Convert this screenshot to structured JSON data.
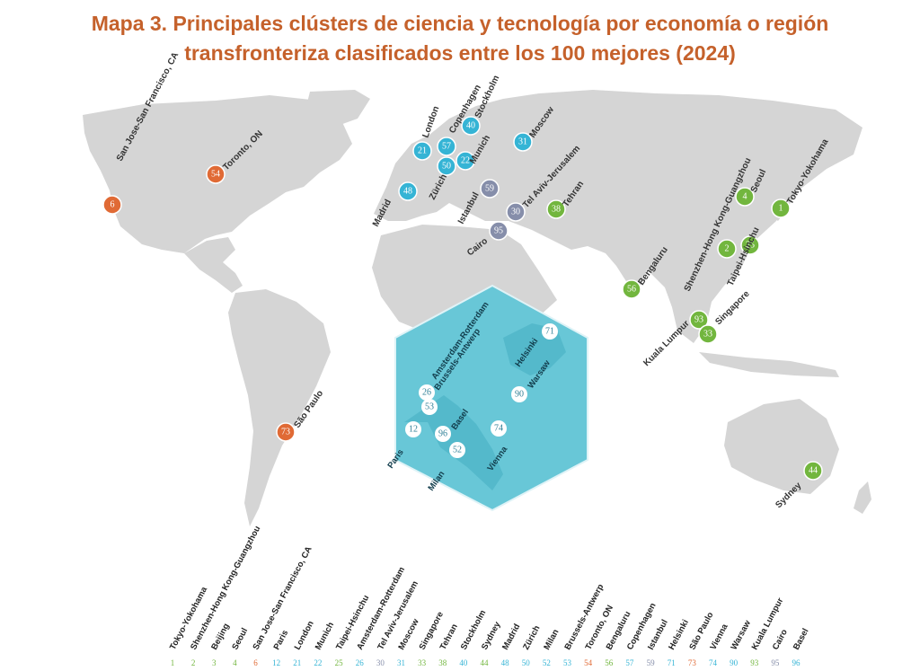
{
  "title": {
    "line1": "Mapa 3. Principales clústers de ciencia y tecnología por economía o región",
    "line2": "transfronteriza clasificados entre los 100 mejores (2024)"
  },
  "colors": {
    "Americas": "#e06a35",
    "Europe": "#35b4d5",
    "MiddleEastAfrica": "#868eaa",
    "AsiaPacific": "#72b63e",
    "inset_fill": "#68c7d7"
  },
  "markers": [
    {
      "name": "San Jose-San Francisco, CA",
      "rank": "6",
      "region": "Americas"
    },
    {
      "name": "Toronto, ON",
      "rank": "54",
      "region": "Americas"
    },
    {
      "name": "São Paulo",
      "rank": "73",
      "region": "Americas"
    },
    {
      "name": "London",
      "rank": "21",
      "region": "Europe"
    },
    {
      "name": "Copenhagen",
      "rank": "57",
      "region": "Europe"
    },
    {
      "name": "Stockholm",
      "rank": "40",
      "region": "Europe"
    },
    {
      "name": "Munich",
      "rank": "22",
      "region": "Europe"
    },
    {
      "name": "Zürich",
      "rank": "50",
      "region": "Europe"
    },
    {
      "name": "Madrid",
      "rank": "48",
      "region": "Europe"
    },
    {
      "name": "Moscow",
      "rank": "31",
      "region": "Europe"
    },
    {
      "name": "Istanbul",
      "rank": "59",
      "region": "MiddleEastAfrica"
    },
    {
      "name": "Tel Aviv-Jerusalem",
      "rank": "30",
      "region": "MiddleEastAfrica"
    },
    {
      "name": "Cairo",
      "rank": "95",
      "region": "MiddleEastAfrica"
    },
    {
      "name": "Tehran",
      "rank": "38",
      "region": "AsiaPacific"
    },
    {
      "name": "Seoul",
      "rank": "4",
      "region": "AsiaPacific"
    },
    {
      "name": "Tokyo-Yokohama",
      "rank": "1",
      "region": "AsiaPacific"
    },
    {
      "name": "Shenzhen-Hong Kong-Guangzhou",
      "rank": "2",
      "region": "AsiaPacific"
    },
    {
      "name": "Taipei-Hsinchu",
      "rank": "25",
      "region": "AsiaPacific"
    },
    {
      "name": "Bengaluru",
      "rank": "56",
      "region": "AsiaPacific"
    },
    {
      "name": "Kuala Lumpur",
      "rank": "93",
      "region": "AsiaPacific"
    },
    {
      "name": "Singapore",
      "rank": "33",
      "region": "AsiaPacific"
    },
    {
      "name": "Sydney",
      "rank": "44",
      "region": "AsiaPacific"
    }
  ],
  "inset": [
    {
      "name": "Amsterdam-Rotterdam",
      "rank": "26"
    },
    {
      "name": "Brussels-Antwerp",
      "rank": "53"
    },
    {
      "name": "Paris",
      "rank": "12"
    },
    {
      "name": "Basel",
      "rank": "96"
    },
    {
      "name": "Milan",
      "rank": "52"
    },
    {
      "name": "Vienna",
      "rank": "74"
    },
    {
      "name": "Warsaw",
      "rank": "90"
    },
    {
      "name": "Helsinki",
      "rank": "71"
    }
  ],
  "legend": [
    {
      "name": "Tokyo-Yokohama",
      "rank": "1",
      "region": "AsiaPacific"
    },
    {
      "name": "Shenzhen-Hong Kong-Guangzhou",
      "rank": "2",
      "region": "AsiaPacific"
    },
    {
      "name": "Beijing",
      "rank": "3",
      "region": "AsiaPacific"
    },
    {
      "name": "Seoul",
      "rank": "4",
      "region": "AsiaPacific"
    },
    {
      "name": "San Jose-San Francisco, CA",
      "rank": "6",
      "region": "Americas"
    },
    {
      "name": "Paris",
      "rank": "12",
      "region": "Europe"
    },
    {
      "name": "London",
      "rank": "21",
      "region": "Europe"
    },
    {
      "name": "Munich",
      "rank": "22",
      "region": "Europe"
    },
    {
      "name": "Taipei-Hsinchu",
      "rank": "25",
      "region": "AsiaPacific"
    },
    {
      "name": "Amsterdam-Rotterdam",
      "rank": "26",
      "region": "Europe"
    },
    {
      "name": "Tel Aviv-Jerusalem",
      "rank": "30",
      "region": "MiddleEastAfrica"
    },
    {
      "name": "Moscow",
      "rank": "31",
      "region": "Europe"
    },
    {
      "name": "Singapore",
      "rank": "33",
      "region": "AsiaPacific"
    },
    {
      "name": "Tehran",
      "rank": "38",
      "region": "AsiaPacific"
    },
    {
      "name": "Stockholm",
      "rank": "40",
      "region": "Europe"
    },
    {
      "name": "Sydney",
      "rank": "44",
      "region": "AsiaPacific"
    },
    {
      "name": "Madrid",
      "rank": "48",
      "region": "Europe"
    },
    {
      "name": "Zürich",
      "rank": "50",
      "region": "Europe"
    },
    {
      "name": "Milan",
      "rank": "52",
      "region": "Europe"
    },
    {
      "name": "Brussels-Antwerp",
      "rank": "53",
      "region": "Europe"
    },
    {
      "name": "Toronto, ON",
      "rank": "54",
      "region": "Americas"
    },
    {
      "name": "Bengaluru",
      "rank": "56",
      "region": "AsiaPacific"
    },
    {
      "name": "Copenhagen",
      "rank": "57",
      "region": "Europe"
    },
    {
      "name": "Istanbul",
      "rank": "59",
      "region": "MiddleEastAfrica"
    },
    {
      "name": "Helsinki",
      "rank": "71",
      "region": "Europe"
    },
    {
      "name": "São Paulo",
      "rank": "73",
      "region": "Americas"
    },
    {
      "name": "Vienna",
      "rank": "74",
      "region": "Europe"
    },
    {
      "name": "Warsaw",
      "rank": "90",
      "region": "Europe"
    },
    {
      "name": "Kuala Lumpur",
      "rank": "93",
      "region": "AsiaPacific"
    },
    {
      "name": "Cairo",
      "rank": "95",
      "region": "MiddleEastAfrica"
    },
    {
      "name": "Basel",
      "rank": "96",
      "region": "Europe"
    }
  ]
}
